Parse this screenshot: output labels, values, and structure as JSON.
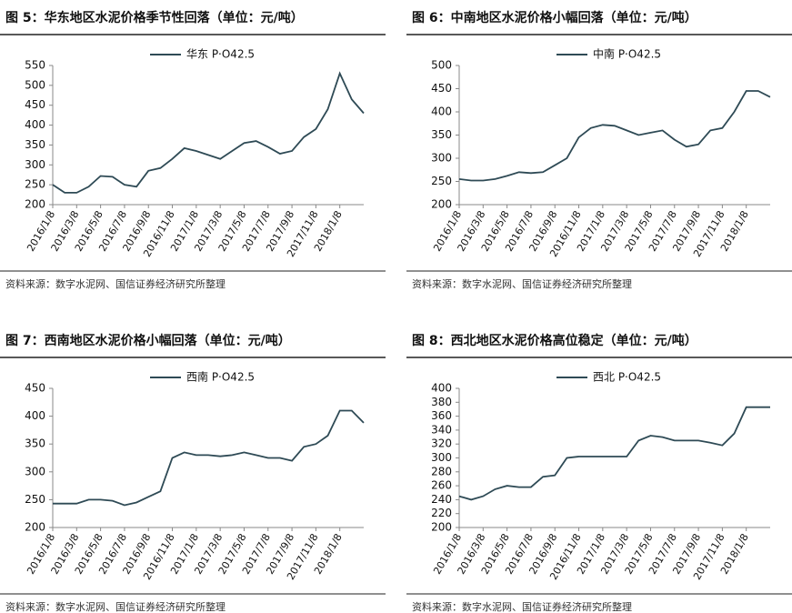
{
  "chart_data": [
    {
      "type": "line",
      "title": "图 5：华东地区水泥价格季节性回落（单位：元/吨）",
      "source": "资料来源：数字水泥网、国信证券经济研究所整理",
      "categories": [
        "2016/1/8",
        null,
        "2016/3/8",
        null,
        "2016/5/8",
        null,
        "2016/7/8",
        null,
        "2016/9/8",
        null,
        "2016/11/8",
        null,
        "2017/1/8",
        null,
        "2017/3/8",
        null,
        "2017/5/8",
        null,
        "2017/7/8",
        null,
        "2017/9/8",
        null,
        "2017/11/8",
        null,
        "2018/1/8",
        null,
        null
      ],
      "series": [
        {
          "name": "华东 P·O42.5",
          "color": "#2e4a55",
          "values": [
            250,
            230,
            230,
            245,
            272,
            270,
            250,
            245,
            285,
            292,
            315,
            342,
            335,
            325,
            315,
            335,
            355,
            360,
            345,
            328,
            335,
            370,
            390,
            440,
            530,
            465,
            430
          ]
        }
      ],
      "ylim": [
        200,
        550
      ],
      "yticks": [
        200,
        250,
        300,
        350,
        400,
        450,
        500,
        550
      ]
    },
    {
      "type": "line",
      "title": "图 6：中南地区水泥价格小幅回落（单位：元/吨）",
      "source": "资料来源：数字水泥网、国信证券经济研究所整理",
      "categories": [
        "2016/1/8",
        null,
        "2016/3/8",
        null,
        "2016/5/8",
        null,
        "2016/7/8",
        null,
        "2016/9/8",
        null,
        "2016/11/8",
        null,
        "2017/1/8",
        null,
        "2017/3/8",
        null,
        "2017/5/8",
        null,
        "2017/7/8",
        null,
        "2017/9/8",
        null,
        "2017/11/8",
        null,
        "2018/1/8",
        null,
        null
      ],
      "series": [
        {
          "name": "中南 P·O42.5",
          "color": "#2e4a55",
          "values": [
            255,
            252,
            252,
            255,
            262,
            270,
            268,
            270,
            285,
            300,
            345,
            365,
            372,
            370,
            360,
            350,
            355,
            360,
            340,
            325,
            330,
            360,
            365,
            400,
            445,
            445,
            432
          ]
        }
      ],
      "ylim": [
        200,
        500
      ],
      "yticks": [
        200,
        250,
        300,
        350,
        400,
        450,
        500
      ]
    },
    {
      "type": "line",
      "title": "图 7：西南地区水泥价格小幅回落（单位：元/吨）",
      "source": "资料来源：数字水泥网、国信证券经济研究所整理",
      "categories": [
        "2016/1/8",
        null,
        "2016/3/8",
        null,
        "2016/5/8",
        null,
        "2016/7/8",
        null,
        "2016/9/8",
        null,
        "2016/11/8",
        null,
        "2017/1/8",
        null,
        "2017/3/8",
        null,
        "2017/5/8",
        null,
        "2017/7/8",
        null,
        "2017/9/8",
        null,
        "2017/11/8",
        null,
        "2018/1/8",
        null,
        null
      ],
      "series": [
        {
          "name": "西南 P·O42.5",
          "color": "#2e4a55",
          "values": [
            243,
            243,
            243,
            250,
            250,
            248,
            240,
            245,
            255,
            265,
            325,
            335,
            330,
            330,
            328,
            330,
            335,
            330,
            325,
            325,
            320,
            345,
            350,
            365,
            410,
            410,
            388
          ]
        }
      ],
      "ylim": [
        200,
        450
      ],
      "yticks": [
        200,
        250,
        300,
        350,
        400,
        450
      ]
    },
    {
      "type": "line",
      "title": "图 8：西北地区水泥价格高位稳定（单位：元/吨）",
      "source": "资料来源：数字水泥网、国信证券经济研究所整理",
      "categories": [
        "2016/1/8",
        null,
        "2016/3/8",
        null,
        "2016/5/8",
        null,
        "2016/7/8",
        null,
        "2016/9/8",
        null,
        "2016/11/8",
        null,
        "2017/1/8",
        null,
        "2017/3/8",
        null,
        "2017/5/8",
        null,
        "2017/7/8",
        null,
        "2017/9/8",
        null,
        "2017/11/8",
        null,
        "2018/1/8",
        null,
        null
      ],
      "series": [
        {
          "name": "西北 P·O42.5",
          "color": "#2e4a55",
          "values": [
            245,
            240,
            245,
            255,
            260,
            258,
            258,
            273,
            275,
            300,
            302,
            302,
            302,
            302,
            302,
            325,
            332,
            330,
            325,
            325,
            325,
            322,
            318,
            335,
            373,
            373,
            373
          ]
        }
      ],
      "ylim": [
        200,
        400
      ],
      "yticks": [
        200,
        220,
        240,
        260,
        280,
        300,
        320,
        340,
        360,
        380,
        400
      ]
    }
  ]
}
